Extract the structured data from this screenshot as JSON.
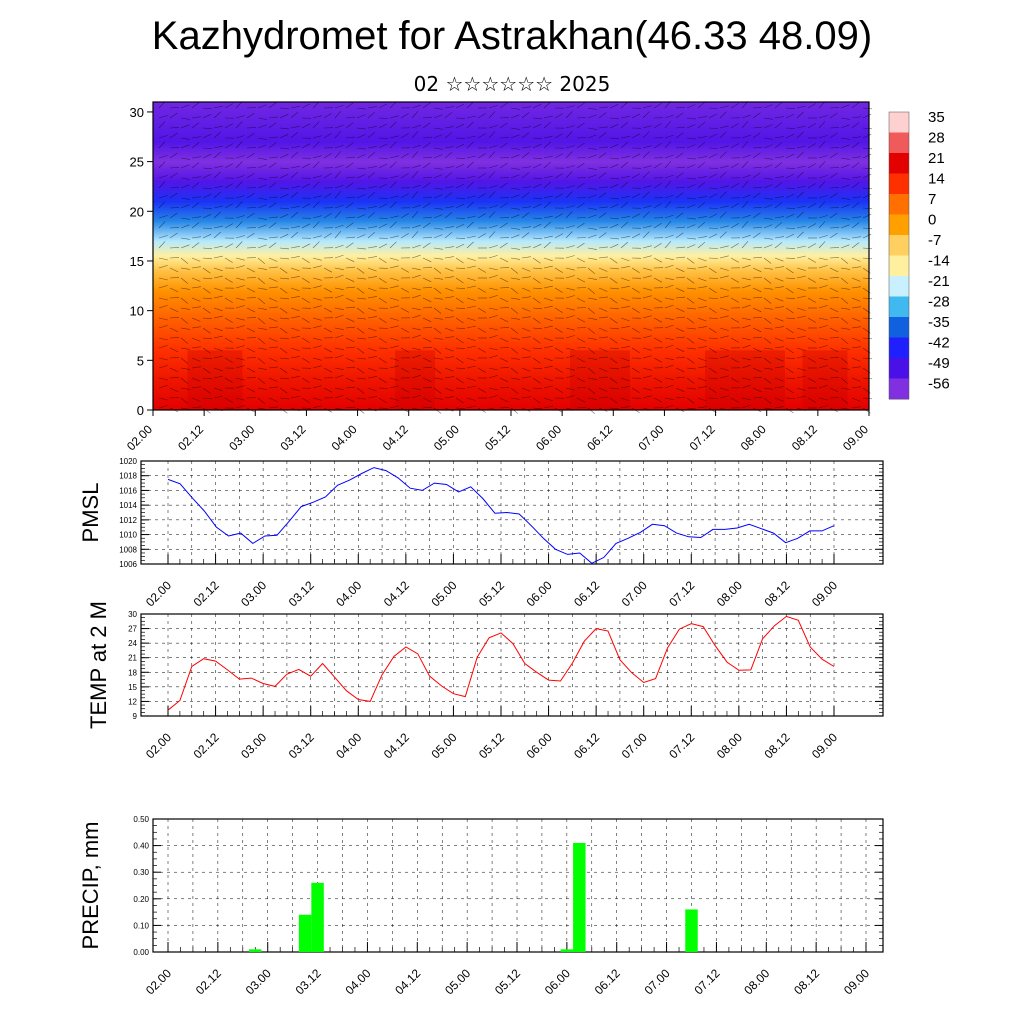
{
  "header": {
    "title": "Kazhydromet for Astrakhan(46.33 48.09)",
    "subtitle": "02 ☆☆☆☆☆☆ 2025"
  },
  "colors": {
    "pmsl_line": "#0000ff",
    "temp_line": "#ff0000",
    "precip_bar": "#00ff00"
  },
  "chart_data": [
    {
      "type": "heatmap",
      "title": "",
      "ylabel": "",
      "xticks": [
        "02.00",
        "02.12",
        "03.00",
        "03.12",
        "04.00",
        "04.12",
        "05.00",
        "05.12",
        "06.00",
        "06.12",
        "07.00",
        "07.12",
        "08.00",
        "08.12",
        "09.00"
      ],
      "yticks": [
        0,
        5,
        10,
        15,
        20,
        25,
        30
      ],
      "ylim": [
        0,
        31
      ],
      "colorbar_labels": [
        "35",
        "28",
        "21",
        "14",
        "7",
        "0",
        "-7",
        "-14",
        "-21",
        "-28",
        "-35",
        "-42",
        "-49",
        "-56"
      ],
      "colorbar_colors": [
        "#ffd0d0",
        "#f05a5a",
        "#e30000",
        "#ff3000",
        "#ff7000",
        "#ffa000",
        "#ffd060",
        "#fff0a0",
        "#c8f0ff",
        "#40b8f0",
        "#1060e0",
        "#2020ff",
        "#4a10e8",
        "#8030e0"
      ],
      "temperature_profile": [
        {
          "height": 0,
          "value": 21
        },
        {
          "height": 3,
          "value": 18
        },
        {
          "height": 6,
          "value": 14
        },
        {
          "height": 9,
          "value": 9
        },
        {
          "height": 12,
          "value": 2
        },
        {
          "height": 14,
          "value": -5
        },
        {
          "height": 15.5,
          "value": -14
        },
        {
          "height": 17,
          "value": -22
        },
        {
          "height": 19,
          "value": -32
        },
        {
          "height": 21,
          "value": -40
        },
        {
          "height": 23,
          "value": -50
        },
        {
          "height": 25,
          "value": -56
        },
        {
          "height": 27,
          "value": -50
        },
        {
          "height": 31,
          "value": -54
        }
      ]
    },
    {
      "type": "line",
      "ylabel": "PMSL",
      "xticks": [
        "02.00",
        "02.12",
        "03.00",
        "03.12",
        "04.00",
        "04.12",
        "05.00",
        "05.12",
        "06.00",
        "06.12",
        "07.00",
        "07.12",
        "08.00",
        "08.12",
        "09.00"
      ],
      "yticks": [
        "1006",
        "1008",
        "1010",
        "1012",
        "1014",
        "1016",
        "1018",
        "1020"
      ],
      "ylim": [
        1006,
        1020
      ],
      "series": [
        {
          "values": [
            1017.5,
            1016.9,
            1015.0,
            1013.2,
            1011.0,
            1009.8,
            1010.2,
            1008.8,
            1009.8,
            1009.9,
            1011.8,
            1013.8,
            1014.4,
            1015.1,
            1016.7,
            1017.4,
            1018.3,
            1019.1,
            1018.7,
            1017.7,
            1016.3,
            1016.0,
            1017.0,
            1016.8,
            1015.8,
            1016.5,
            1014.9,
            1012.9,
            1013.0,
            1012.8,
            1011.2,
            1009.5,
            1008.0,
            1007.3,
            1007.5,
            1006.1,
            1006.9,
            1008.8,
            1009.5,
            1010.3,
            1011.4,
            1011.2,
            1010.2,
            1009.7,
            1009.6,
            1010.7,
            1010.7,
            1010.9,
            1011.4,
            1010.8,
            1010.2,
            1008.9,
            1009.5,
            1010.5,
            1010.5,
            1011.2
          ]
        }
      ]
    },
    {
      "type": "line",
      "ylabel": "TEMP at 2 M",
      "xticks": [
        "02.00",
        "02.12",
        "03.00",
        "03.12",
        "04.00",
        "04.12",
        "05.00",
        "05.12",
        "06.00",
        "06.12",
        "07.00",
        "07.12",
        "08.00",
        "08.12",
        "09.00"
      ],
      "yticks": [
        "9",
        "12",
        "15",
        "18",
        "21",
        "24",
        "27",
        "30"
      ],
      "ylim": [
        9,
        30
      ],
      "series": [
        {
          "values": [
            10.2,
            12.2,
            19.2,
            20.8,
            20.3,
            18.5,
            16.6,
            16.8,
            15.7,
            15.1,
            17.6,
            18.6,
            17.2,
            19.8,
            17.0,
            14.2,
            12.4,
            12.0,
            17.5,
            21.3,
            23.2,
            21.8,
            17.2,
            15.2,
            13.6,
            13.0,
            21.1,
            25.1,
            26.1,
            23.9,
            19.8,
            18.0,
            16.4,
            16.2,
            19.9,
            24.4,
            27.0,
            26.5,
            20.6,
            17.9,
            15.9,
            16.7,
            23.0,
            26.9,
            28.0,
            27.4,
            23.5,
            20.1,
            18.4,
            18.5,
            24.9,
            27.6,
            29.5,
            28.7,
            23.2,
            20.7,
            19.2
          ]
        }
      ]
    },
    {
      "type": "bar",
      "ylabel": "PRECIP, mm",
      "xticks": [
        "02.00",
        "02.12",
        "03.00",
        "03.12",
        "04.00",
        "04.12",
        "05.00",
        "05.12",
        "06.00",
        "06.12",
        "07.00",
        "07.12",
        "08.00",
        "08.12",
        "09.00"
      ],
      "yticks": [
        "0.00",
        "0.10",
        "0.20",
        "0.30",
        "0.40",
        "0.50"
      ],
      "ylim": [
        0,
        0.5
      ],
      "bars": [
        {
          "time": "02.21",
          "value": 0.01
        },
        {
          "time": "03.09",
          "value": 0.14
        },
        {
          "time": "03.12",
          "value": 0.26
        },
        {
          "time": "06.00",
          "value": 0.01
        },
        {
          "time": "06.03",
          "value": 0.41
        },
        {
          "time": "07.06",
          "value": 0.16
        }
      ]
    }
  ]
}
